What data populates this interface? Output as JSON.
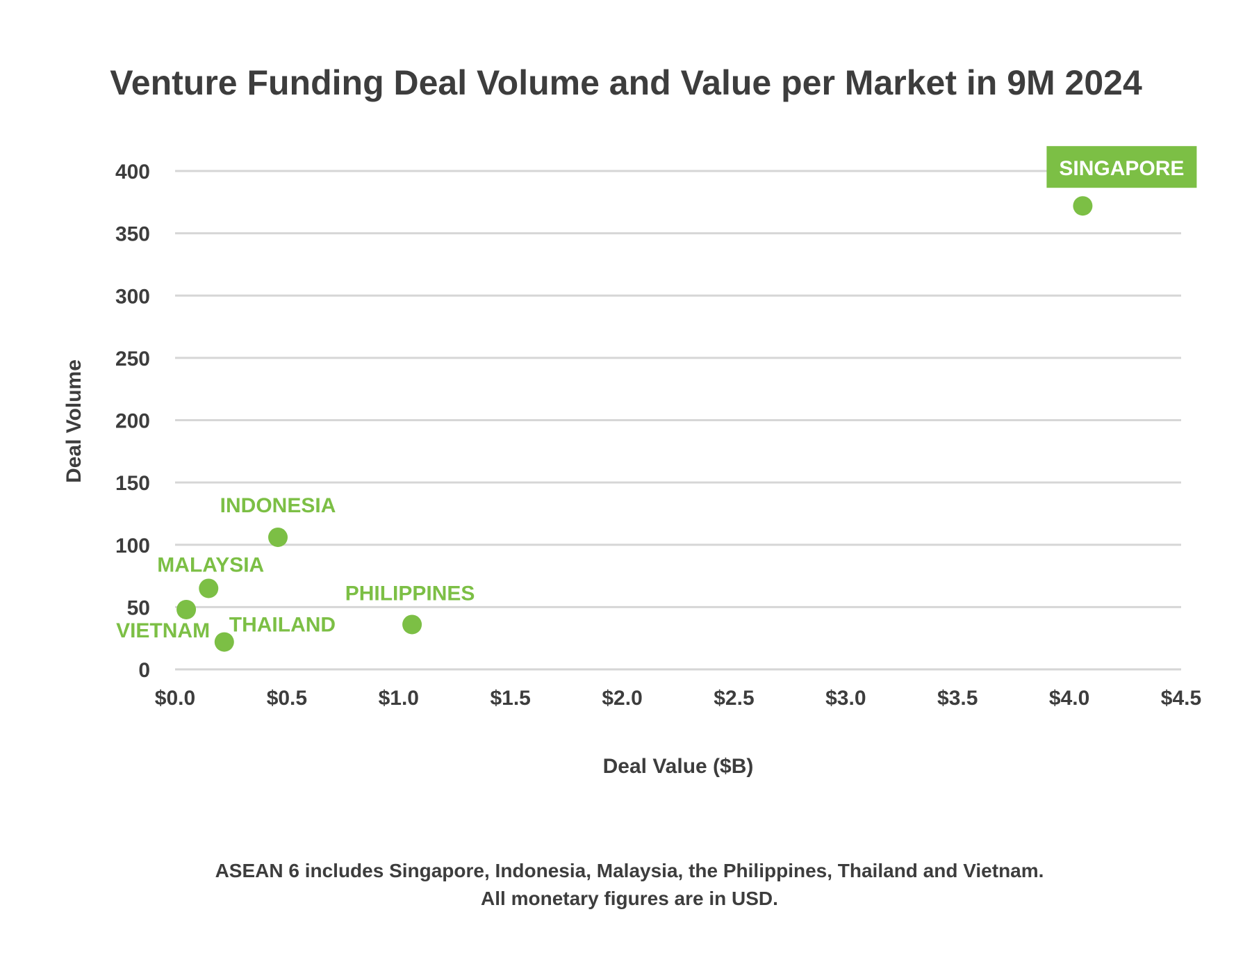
{
  "chart_data": {
    "type": "scatter",
    "title": "Venture Funding Deal Volume and Value per Market in 9M 2024",
    "xlabel": "Deal Value ($B)",
    "ylabel": "Deal Volume",
    "xlim": [
      0,
      4.5
    ],
    "ylim": [
      0,
      400
    ],
    "x_ticks": [
      0,
      0.5,
      1.0,
      1.5,
      2.0,
      2.5,
      3.0,
      3.5,
      4.0,
      4.5
    ],
    "x_tick_labels": [
      "$0.0",
      "$0.5",
      "$1.0",
      "$1.5",
      "$2.0",
      "$2.5",
      "$3.0",
      "$3.5",
      "$4.0",
      "$4.5"
    ],
    "y_ticks": [
      0,
      50,
      100,
      150,
      200,
      250,
      300,
      350,
      400
    ],
    "y_tick_labels": [
      "0",
      "50",
      "100",
      "150",
      "200",
      "250",
      "300",
      "350",
      "400"
    ],
    "grid": "horizontal",
    "point_color": "#7cbf45",
    "highlight_label_bg": "#7cbf45",
    "highlight_label_text": "#ffffff",
    "points": [
      {
        "label": "SINGAPORE",
        "x": 4.06,
        "y": 372,
        "highlight": true
      },
      {
        "label": "INDONESIA",
        "x": 0.46,
        "y": 106,
        "highlight": false
      },
      {
        "label": "MALAYSIA",
        "x": 0.15,
        "y": 65,
        "highlight": false
      },
      {
        "label": "VIETNAM",
        "x": 0.05,
        "y": 48,
        "highlight": false
      },
      {
        "label": "THAILAND",
        "x": 0.22,
        "y": 22,
        "highlight": false
      },
      {
        "label": "PHILIPPINES",
        "x": 1.06,
        "y": 36,
        "highlight": false
      }
    ]
  },
  "footnote": {
    "line1": "ASEAN 6 includes Singapore, Indonesia, Malaysia, the Philippines, Thailand and Vietnam.",
    "line2": "All monetary figures are in USD."
  }
}
